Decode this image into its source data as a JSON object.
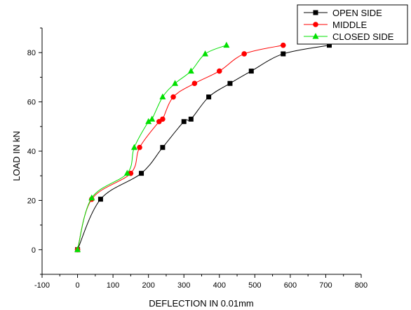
{
  "chart_data": {
    "type": "line",
    "title": "",
    "xlabel": "DEFLECTION IN 0.01mm",
    "ylabel": "LOAD IN kN",
    "xlim": [
      -100,
      800
    ],
    "ylim": [
      -10,
      90
    ],
    "xticks": [
      -100,
      0,
      100,
      200,
      300,
      400,
      500,
      600,
      700,
      800
    ],
    "yticks": [
      0,
      20,
      40,
      60,
      80
    ],
    "grid": false,
    "legend_position": "top-right",
    "series": [
      {
        "name": "OPEN SIDE",
        "color": "#000000",
        "marker": "square",
        "x": [
          0,
          65,
          180,
          240,
          300,
          320,
          370,
          430,
          490,
          580,
          710
        ],
        "y": [
          0,
          20.5,
          31,
          41.5,
          52,
          53,
          62,
          67.5,
          72.5,
          79.5,
          83
        ]
      },
      {
        "name": "MIDDLE",
        "color": "#ff0000",
        "marker": "circle",
        "x": [
          0,
          40,
          150,
          175,
          230,
          240,
          270,
          330,
          400,
          470,
          580
        ],
        "y": [
          0,
          20.5,
          31,
          41.5,
          52,
          53,
          62,
          67.5,
          72.5,
          79.5,
          83
        ]
      },
      {
        "name": "CLOSED SIDE",
        "color": "#00e000",
        "marker": "triangle",
        "x": [
          0,
          40,
          140,
          160,
          200,
          210,
          240,
          275,
          320,
          360,
          420
        ],
        "y": [
          0,
          21,
          31,
          41.5,
          52,
          53,
          62,
          67.5,
          72.5,
          79.5,
          83
        ]
      }
    ]
  }
}
